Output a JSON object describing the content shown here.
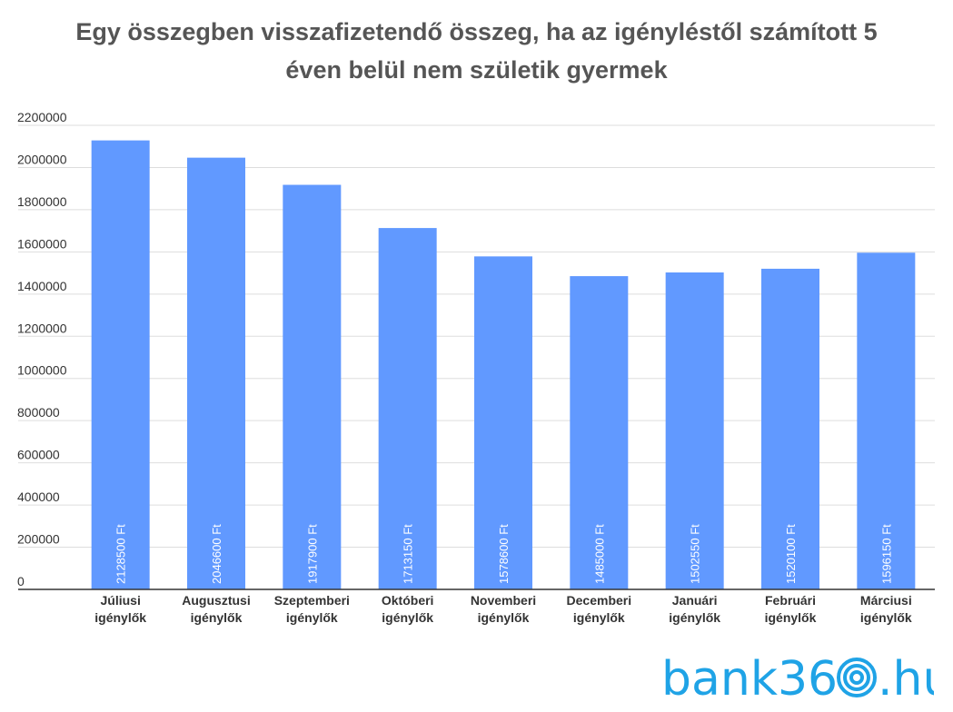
{
  "chart_data": {
    "type": "bar",
    "title_lines": [
      "Egy összegben visszafizetendő összeg, ha az igényléstől számított 5",
      "éven belül nem születik gyermek"
    ],
    "categories": [
      [
        "Júliusi",
        "igénylők"
      ],
      [
        "Augusztusi",
        "igénylők"
      ],
      [
        "Szeptemberi",
        "igénylők"
      ],
      [
        "Októberi",
        "igénylők"
      ],
      [
        "Novemberi",
        "igénylők"
      ],
      [
        "Decemberi",
        "igénylők"
      ],
      [
        "Januári",
        "igénylők"
      ],
      [
        "Februári",
        "igénylők"
      ],
      [
        "Márciusi",
        "igénylők"
      ]
    ],
    "values": [
      2128500,
      2046600,
      1917900,
      1713150,
      1578600,
      1485000,
      1502550,
      1520100,
      1596150
    ],
    "data_labels": [
      "2128500 Ft",
      "2046600 Ft",
      "1917900 Ft",
      "1713150 Ft",
      "1578600 Ft",
      "1485000 Ft",
      "1502550 Ft",
      "1520100 Ft",
      "1596150 Ft"
    ],
    "y_ticks": [
      "0",
      "200000",
      "400000",
      "600000",
      "800000",
      "1000000",
      "1200000",
      "1400000",
      "1600000",
      "1800000",
      "2000000",
      "2200000"
    ],
    "ylim": [
      0,
      2200000
    ],
    "grid": true,
    "bar_color": "#6199ff",
    "label_color": "#ffffff",
    "axis_text_color": "#333333",
    "title_color": "#555555"
  },
  "brand": {
    "prefix": "bank36",
    "suffix": ".hu",
    "color": "#1fa3e6"
  }
}
